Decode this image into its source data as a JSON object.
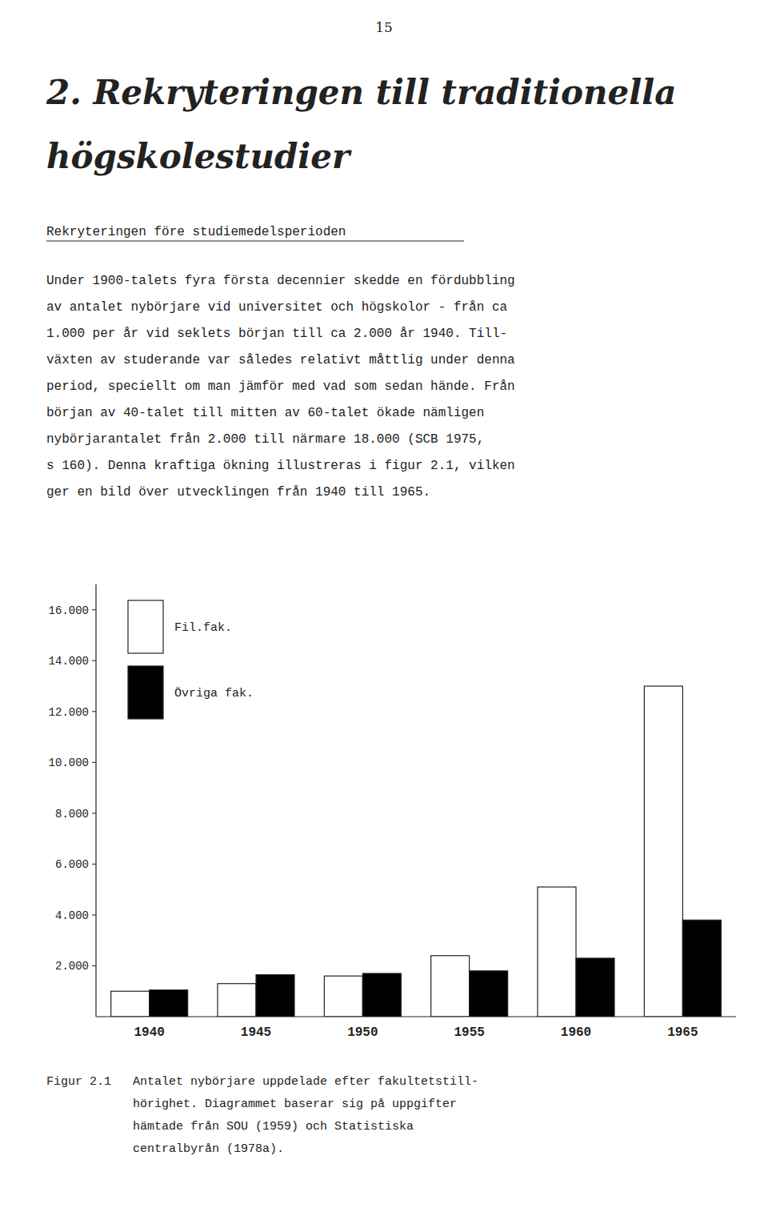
{
  "page_number": "15",
  "title_lines": [
    "2. Rekryteringen till traditionella",
    "högskolestudier"
  ],
  "subtitle": "Rekryteringen före studiemedelsperioden",
  "body_text": [
    "Under 1900-talets fyra första decennier skedde en fördubbling",
    "av antalet nybörjare vid universitet och högskolor - från ca",
    "1.000 per år vid seklets början till ca 2.000 år 1940. Till-",
    "växten av studerande var således relativt måttlig under denna",
    "period, speciellt om man jämför med vad som sedan hände. Från",
    "början av 40-talet till mitten av 60-talet ökade nämligen",
    "nybörjarantalet från 2.000 till närmare 18.000 (SCB 1975,",
    "s 160). Denna kraftiga ökning illustreras i figur 2.1, vilken",
    "ger en bild över utvecklingen från 1940 till 1965."
  ],
  "caption_lines": [
    "Figur 2.1   Antalet nybörjare uppdelade efter fakultetstill-",
    "            hörighet. Diagrammet baserar sig på uppgifter",
    "            hämtade från SOU (1959) och Statistiska",
    "            centralbyrån (1978a)."
  ],
  "chart_data": {
    "type": "bar",
    "categories": [
      "1940",
      "1945",
      "1950",
      "1955",
      "1960",
      "1965"
    ],
    "series": [
      {
        "name": "Fil.fak.",
        "color": "#ffffff",
        "values": [
          1000,
          1300,
          1600,
          2400,
          5100,
          13000
        ]
      },
      {
        "name": "Övriga fak.",
        "color": "#000000",
        "values": [
          1050,
          1650,
          1700,
          1800,
          2300,
          3800
        ]
      }
    ],
    "ylim": [
      0,
      17000
    ],
    "yticks": [
      {
        "value": 2000,
        "label": "2.000"
      },
      {
        "value": 4000,
        "label": "4.000"
      },
      {
        "value": 6000,
        "label": "6.000"
      },
      {
        "value": 8000,
        "label": "8.000"
      },
      {
        "value": 10000,
        "label": "10.000"
      },
      {
        "value": 12000,
        "label": "12.000"
      },
      {
        "value": 14000,
        "label": "14.000"
      },
      {
        "value": 16000,
        "label": "16.000"
      }
    ],
    "grid": false,
    "legend": "upper left"
  }
}
